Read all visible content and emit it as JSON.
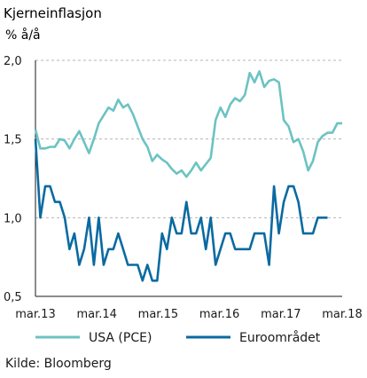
{
  "chart_data": {
    "type": "line",
    "title": "Kjerneinflasjon",
    "ylabel": "% å/å",
    "ylim": [
      0.5,
      2.0
    ],
    "yticks": [
      "2,0",
      "1,5",
      "1,0",
      "0,5"
    ],
    "ytick_values": [
      2.0,
      1.5,
      1.0,
      0.5
    ],
    "xticks": [
      "mar.13",
      "mar.14",
      "mar.15",
      "mar.16",
      "mar.17",
      "mar.18"
    ],
    "grid": "horizontal-dashed",
    "legend": "bottom",
    "series": [
      {
        "name": "USA (PCE)",
        "color": "#6cc3c2",
        "values": [
          1.56,
          1.44,
          1.44,
          1.45,
          1.45,
          1.5,
          1.49,
          1.44,
          1.5,
          1.55,
          1.48,
          1.41,
          1.5,
          1.6,
          1.65,
          1.7,
          1.68,
          1.75,
          1.7,
          1.72,
          1.66,
          1.58,
          1.5,
          1.45,
          1.36,
          1.4,
          1.37,
          1.35,
          1.31,
          1.28,
          1.3,
          1.26,
          1.3,
          1.35,
          1.3,
          1.34,
          1.38,
          1.62,
          1.7,
          1.64,
          1.72,
          1.76,
          1.74,
          1.78,
          1.92,
          1.86,
          1.93,
          1.83,
          1.87,
          1.88,
          1.86,
          1.62,
          1.58,
          1.48,
          1.5,
          1.42,
          1.3,
          1.36,
          1.48,
          1.52,
          1.54,
          1.54,
          1.6,
          1.6
        ]
      },
      {
        "name": "Euroområdet",
        "color": "#0a6aa1",
        "values": [
          1.5,
          1.0,
          1.2,
          1.2,
          1.1,
          1.1,
          1.0,
          0.8,
          0.9,
          0.7,
          0.8,
          1.0,
          0.7,
          1.0,
          0.7,
          0.8,
          0.8,
          0.9,
          0.8,
          0.7,
          0.7,
          0.7,
          0.6,
          0.7,
          0.6,
          0.6,
          0.9,
          0.8,
          1.0,
          0.9,
          0.9,
          1.1,
          0.9,
          0.9,
          1.0,
          0.8,
          1.0,
          0.7,
          0.8,
          0.9,
          0.9,
          0.8,
          0.8,
          0.8,
          0.8,
          0.9,
          0.9,
          0.9,
          0.7,
          1.2,
          0.9,
          1.1,
          1.2,
          1.2,
          1.1,
          0.9,
          0.9,
          0.9,
          1.0,
          1.0,
          1.0
        ]
      }
    ]
  },
  "source": "Kilde: Bloomberg"
}
